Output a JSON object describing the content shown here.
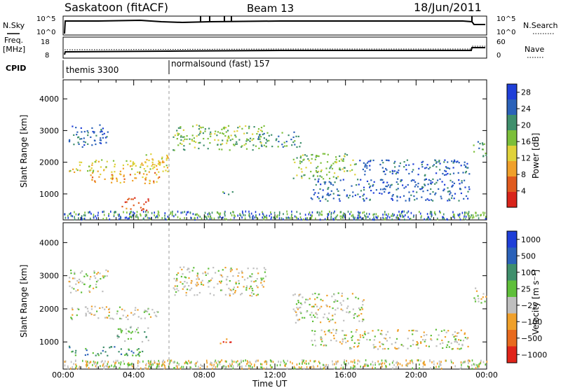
{
  "header": {
    "station": "Saskatoon (fitACF)",
    "beam": "Beam 13",
    "date": "18/Jun/2011"
  },
  "strip_nsky": {
    "left_label": "N.Sky",
    "left_ticks": [
      "10^5",
      "10^0"
    ],
    "right_ticks": [
      "10^5",
      "10^0"
    ],
    "right_label": "N.Search"
  },
  "strip_freq": {
    "left_label_1": "Freq.",
    "left_label_2": "[MHz]",
    "left_ticks": [
      "18",
      "8"
    ],
    "right_ticks": [
      "60",
      "0"
    ],
    "right_label": "Nave"
  },
  "cpid": {
    "label": "CPID",
    "modes": [
      {
        "text": "themis 3300",
        "start_hour": 0
      },
      {
        "text": "normalsound (fast) 157",
        "start_hour": 6
      }
    ]
  },
  "time_axis": {
    "label": "Time UT",
    "ticks": [
      "00:00",
      "04:00",
      "08:00",
      "12:00",
      "16:00",
      "20:00",
      "00:00"
    ]
  },
  "chart_data": [
    {
      "type": "heatmap",
      "title": "",
      "xlabel": "Time UT",
      "ylabel": "Slant Range [km]",
      "xlim": [
        0,
        24
      ],
      "ylim": [
        180,
        4600
      ],
      "yticks": [
        "1000",
        "2000",
        "3000",
        "4000"
      ],
      "colorbar": {
        "label": "Power [dB]",
        "ticks": [
          "4",
          "8",
          "12",
          "16",
          "20",
          "24",
          "28"
        ],
        "range": [
          0,
          30
        ],
        "colors": [
          "#1f3fd8",
          "#2b62b9",
          "#3f8f6c",
          "#7cbf3a",
          "#e0d23a",
          "#f0a02a",
          "#e05a1e",
          "#d8241a"
        ]
      },
      "echo_regions": [
        {
          "t0": 0.3,
          "t1": 2.5,
          "r0": 2500,
          "r1": 3200,
          "level": 1
        },
        {
          "t0": 0.3,
          "t1": 5.5,
          "r0": 1700,
          "r1": 2100,
          "level": 4
        },
        {
          "t0": 1.5,
          "t1": 5.5,
          "r0": 1350,
          "r1": 1700,
          "level": 5
        },
        {
          "t0": 3.3,
          "t1": 4.8,
          "r0": 500,
          "r1": 900,
          "level": 6
        },
        {
          "t0": 4.5,
          "t1": 6.0,
          "r0": 1700,
          "r1": 2300,
          "level": 4
        },
        {
          "t0": 6.2,
          "t1": 11.5,
          "r0": 2400,
          "r1": 3200,
          "level": 3
        },
        {
          "t0": 11.0,
          "t1": 13.5,
          "r0": 2500,
          "r1": 3000,
          "level": 2
        },
        {
          "t0": 13.0,
          "t1": 16.5,
          "r0": 1500,
          "r1": 2300,
          "level": 3
        },
        {
          "t0": 14.0,
          "t1": 23.0,
          "r0": 800,
          "r1": 1500,
          "level": 1
        },
        {
          "t0": 16.5,
          "t1": 23.0,
          "r0": 1600,
          "r1": 2100,
          "level": 1
        },
        {
          "t0": 8.8,
          "t1": 9.6,
          "r0": 950,
          "r1": 1100,
          "level": 2
        },
        {
          "t0": 23.2,
          "t1": 24.0,
          "r0": 2200,
          "r1": 2700,
          "level": 2
        }
      ]
    },
    {
      "type": "heatmap",
      "title": "",
      "xlabel": "Time UT",
      "ylabel": "Slant Range [km]",
      "xlim": [
        0,
        24
      ],
      "ylim": [
        180,
        4600
      ],
      "yticks": [
        "1000",
        "2000",
        "3000",
        "4000"
      ],
      "colorbar": {
        "label": "Velocity [m s⁻¹]",
        "ticks": [
          "1000",
          "500",
          "100",
          "25",
          "−25",
          "−100",
          "−500",
          "−1000"
        ],
        "colors": [
          "#1f3fd8",
          "#2b62b9",
          "#3f8f6c",
          "#5fbf3a",
          "#bfbfbf",
          "#f0a02a",
          "#e86a1e",
          "#e0241a"
        ]
      },
      "echo_regions": [
        {
          "t0": 0.3,
          "t1": 2.5,
          "r0": 2500,
          "r1": 3200,
          "level": 4
        },
        {
          "t0": 0.3,
          "t1": 5.5,
          "r0": 1700,
          "r1": 2100,
          "level": 4
        },
        {
          "t0": 0.3,
          "t1": 4.5,
          "r0": 600,
          "r1": 900,
          "level": 2
        },
        {
          "t0": 3.0,
          "t1": 4.8,
          "r0": 1000,
          "r1": 1500,
          "level": 3
        },
        {
          "t0": 6.2,
          "t1": 11.5,
          "r0": 2400,
          "r1": 3300,
          "level": 4
        },
        {
          "t0": 13.0,
          "t1": 17.0,
          "r0": 1600,
          "r1": 2500,
          "level": 4
        },
        {
          "t0": 14.0,
          "t1": 23.0,
          "r0": 800,
          "r1": 1400,
          "level": 4
        },
        {
          "t0": 8.8,
          "t1": 9.6,
          "r0": 950,
          "r1": 1150,
          "level": 6
        },
        {
          "t0": 23.2,
          "t1": 24.0,
          "r0": 2200,
          "r1": 2700,
          "level": 4
        }
      ]
    }
  ]
}
